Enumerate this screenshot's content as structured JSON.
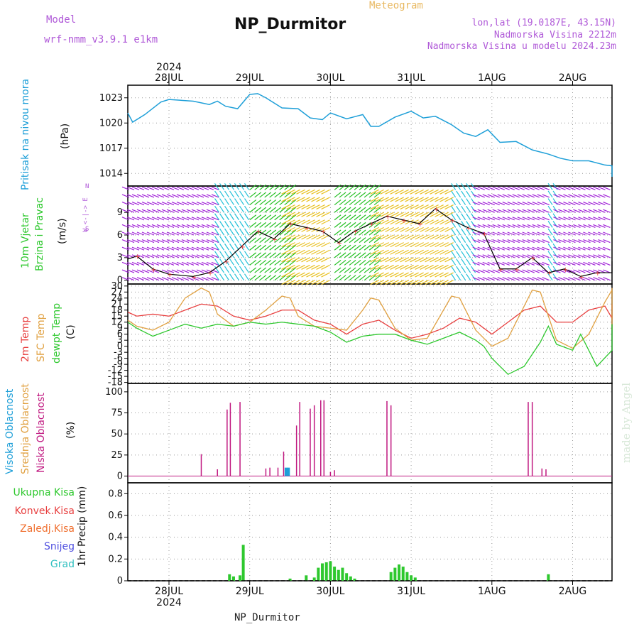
{
  "header": {
    "model_label": "Model",
    "model_name": "wrf-nmm_v3.9.1  e1km",
    "meteogram_label": "Meteogram",
    "station_title": "NP_Durmitor",
    "coords": "lon,lat (19.0187E, 43.15N)",
    "altitude": "Nadmorska Visina 2212m",
    "model_altitude": "Nadmorska Visina u modelu 2024.23m"
  },
  "footer": {
    "station": "NP_Durmitor",
    "credit": "made by Angel"
  },
  "axis": {
    "year": "2024",
    "days": [
      "28JUL",
      "29JUL",
      "30JUL",
      "31JUL",
      "1AUG",
      "2AUG"
    ]
  },
  "panels": {
    "pressure": {
      "label": "Pritisak na nivou mora",
      "unit": "(hPa)"
    },
    "wind": {
      "label1": "10m Vjetar",
      "label2": "Brzina i Pravac",
      "unit": "(m/s)",
      "compass": "W <-|-> E",
      "compass_n": "N",
      "compass_s": "S"
    },
    "temp": {
      "label_2m": "2m Temp",
      "label_sfc": "SFC Temp",
      "label_dew": "dewpt Temp",
      "unit": "(C)"
    },
    "cloud": {
      "label_high": "Visoka Oblacnost",
      "label_mid": "Srednja Oblacnost",
      "label_low": "Niska Oblacnost",
      "unit": "(%)"
    },
    "precip": {
      "unit": "1hr Precip (mm)",
      "legend": [
        "Ukupna Kisa",
        "Konvek.Kisa",
        "Zaledj.Kisa",
        "Snijeg",
        "Grad"
      ]
    }
  },
  "colors": {
    "pressure": "#1e9fd8",
    "t2m": "#e84040",
    "tsfc": "#e0a040",
    "dew": "#2ec82e",
    "cloud_low": "#c01880",
    "cloud_high": "#1e9fd8",
    "precip": "#2ec82e",
    "purple": "#b05ad8",
    "meteogram": "#e8b860",
    "leg_total": "#2ec82e",
    "leg_conv": "#e84040",
    "leg_frz": "#f07030",
    "leg_snow": "#5050e0",
    "leg_grad": "#30c0c0"
  },
  "chart_data": [
    {
      "type": "line",
      "name": "pressure",
      "x": [
        -0.6,
        -0.45,
        -0.3,
        -0.1,
        0.0,
        0.3,
        0.5,
        0.6,
        0.7,
        0.85,
        1.0,
        1.1,
        1.2,
        1.4,
        1.6,
        1.75,
        1.9,
        2.0,
        2.2,
        2.4,
        2.5,
        2.6,
        2.8,
        3.0,
        3.15,
        3.3,
        3.5,
        3.65,
        3.8,
        3.95,
        4.1,
        4.3,
        4.5,
        4.7,
        4.85,
        5.0,
        5.2,
        5.4,
        5.6,
        5.8,
        5.95
      ],
      "y": [
        1021.2,
        1020.1,
        1021.0,
        1022.5,
        1022.8,
        1022.6,
        1022.2,
        1022.6,
        1022.0,
        1021.7,
        1023.4,
        1023.5,
        1023.0,
        1021.8,
        1021.7,
        1020.6,
        1020.4,
        1021.2,
        1020.5,
        1021.0,
        1019.6,
        1019.6,
        1020.7,
        1021.4,
        1020.6,
        1020.8,
        1019.8,
        1018.8,
        1018.4,
        1019.2,
        1017.7,
        1017.8,
        1016.8,
        1016.3,
        1015.8,
        1015.5,
        1015.5,
        1015.0,
        1014.9,
        1014.6,
        1013.6
      ],
      "ylim": [
        1012.5,
        1024.5
      ],
      "yticks": [
        1014,
        1017,
        1020,
        1023
      ]
    },
    {
      "type": "line",
      "name": "wind_speed",
      "x": [
        -0.6,
        -0.4,
        -0.2,
        0.0,
        0.3,
        0.5,
        0.7,
        0.9,
        1.1,
        1.3,
        1.5,
        1.7,
        1.9,
        2.1,
        2.3,
        2.5,
        2.7,
        2.9,
        3.1,
        3.3,
        3.5,
        3.7,
        3.9,
        4.1,
        4.3,
        4.5,
        4.7,
        4.9,
        5.1,
        5.3,
        5.5,
        5.7,
        5.95
      ],
      "y": [
        2.8,
        3.2,
        1.5,
        0.8,
        0.5,
        1.0,
        2.5,
        4.5,
        6.5,
        5.5,
        7.5,
        7.0,
        6.5,
        5.0,
        6.5,
        7.5,
        8.5,
        8.0,
        7.5,
        9.5,
        8.0,
        7.0,
        6.2,
        1.5,
        1.5,
        3.0,
        1.0,
        1.5,
        0.5,
        1.0,
        1.0,
        1.5,
        2.5
      ],
      "ylim": [
        -0.5,
        12.5
      ],
      "yticks": [
        0,
        3,
        6,
        9
      ],
      "barb_bands": [
        {
          "x0": -0.6,
          "x1": 0.62,
          "color": "#a020d8"
        },
        {
          "x0": 0.62,
          "x1": 1.0,
          "color": "#20c0d8"
        },
        {
          "x0": 1.0,
          "x1": 1.5,
          "color": "#20c020"
        },
        {
          "x0": 1.5,
          "x1": 2.05,
          "color": "#e8c020"
        },
        {
          "x0": 2.05,
          "x1": 2.6,
          "color": "#20c020"
        },
        {
          "x0": 2.6,
          "x1": 3.55,
          "color": "#e8c020"
        },
        {
          "x0": 3.55,
          "x1": 3.85,
          "color": "#20c0d8"
        },
        {
          "x0": 3.85,
          "x1": 4.75,
          "color": "#a020d8"
        },
        {
          "x0": 4.75,
          "x1": 4.85,
          "color": "#20c0d8"
        },
        {
          "x0": 4.85,
          "x1": 5.95,
          "color": "#a020d8"
        }
      ]
    },
    {
      "type": "line",
      "name": "temperature",
      "series": [
        {
          "name": "2m Temp",
          "x": [
            -0.6,
            -0.4,
            -0.2,
            0.0,
            0.2,
            0.4,
            0.6,
            0.8,
            1.0,
            1.2,
            1.4,
            1.6,
            1.8,
            2.0,
            2.2,
            2.4,
            2.6,
            2.8,
            3.0,
            3.2,
            3.4,
            3.6,
            3.8,
            4.0,
            4.2,
            4.4,
            4.6,
            4.8,
            5.0,
            5.2,
            5.4,
            5.6,
            5.8,
            5.95
          ],
          "y": [
            17,
            15,
            16,
            15,
            18,
            21,
            20,
            15,
            13,
            15,
            18,
            18,
            13,
            11,
            6,
            11,
            13,
            8,
            4,
            6,
            9,
            14,
            12,
            6,
            12,
            18,
            20,
            12,
            12,
            18,
            20,
            14,
            18,
            21
          ]
        },
        {
          "name": "SFC Temp",
          "x": [
            -0.6,
            -0.4,
            -0.2,
            0.0,
            0.2,
            0.4,
            0.5,
            0.6,
            0.8,
            1.0,
            1.2,
            1.4,
            1.5,
            1.6,
            1.8,
            2.0,
            2.2,
            2.4,
            2.5,
            2.6,
            2.8,
            3.0,
            3.2,
            3.4,
            3.5,
            3.6,
            3.8,
            4.0,
            4.2,
            4.4,
            4.5,
            4.6,
            4.8,
            5.0,
            5.2,
            5.4,
            5.5,
            5.6,
            5.8,
            5.95
          ],
          "y": [
            13,
            10,
            8,
            12,
            24,
            29,
            27,
            16,
            10,
            12,
            18,
            25,
            24,
            15,
            10,
            9,
            8,
            18,
            24,
            23,
            9,
            3,
            4,
            18,
            25,
            24,
            8,
            0,
            4,
            20,
            28,
            27,
            3,
            -1,
            6,
            22,
            28,
            26,
            8,
            29
          ]
        },
        {
          "name": "dewpt Temp",
          "x": [
            -0.6,
            -0.4,
            -0.2,
            0.0,
            0.2,
            0.4,
            0.6,
            0.8,
            1.0,
            1.2,
            1.4,
            1.6,
            1.8,
            2.0,
            2.2,
            2.4,
            2.6,
            2.8,
            3.0,
            3.2,
            3.4,
            3.6,
            3.8,
            3.9,
            4.0,
            4.2,
            4.4,
            4.6,
            4.7,
            4.8,
            5.0,
            5.1,
            5.3,
            5.5,
            5.7,
            5.95
          ],
          "y": [
            12,
            9,
            5,
            8,
            11,
            9,
            11,
            10,
            12,
            11,
            12,
            11,
            10,
            7,
            2,
            5,
            6,
            6,
            3,
            1,
            4,
            7,
            3,
            0,
            -6,
            -14,
            -10,
            2,
            10,
            1,
            -2,
            6,
            -10,
            -2,
            0,
            11
          ]
        }
      ],
      "ylim": [
        -18.5,
        31
      ],
      "yticks": [
        -18,
        -15,
        -12,
        -9,
        -6,
        -3,
        0,
        3,
        6,
        9,
        12,
        15,
        18,
        21,
        24,
        27,
        30
      ]
    },
    {
      "type": "bar",
      "name": "cloud",
      "series": [
        {
          "name": "Niska Oblacnost",
          "x": [
            0.4,
            0.6,
            0.72,
            0.76,
            0.88,
            1.2,
            1.25,
            1.35,
            1.42,
            1.58,
            1.62,
            1.75,
            1.8,
            1.88,
            1.92,
            2.0,
            2.05,
            2.7,
            2.75,
            4.45,
            4.5,
            4.62,
            4.67
          ],
          "values": [
            26,
            8,
            79,
            87,
            88,
            9,
            10,
            10,
            29,
            60,
            88,
            80,
            84,
            90,
            90,
            5,
            7,
            89,
            84,
            88,
            88,
            9,
            8
          ]
        },
        {
          "name": "Visoka Oblacnost",
          "x": [
            1.45,
            1.48
          ],
          "values": [
            10,
            10
          ]
        }
      ],
      "ylim": [
        -8,
        110
      ],
      "yticks": [
        0,
        25,
        50,
        75,
        100
      ]
    },
    {
      "type": "bar",
      "name": "precip",
      "series": [
        {
          "name": "Ukupna Kisa",
          "x": [
            0.75,
            0.8,
            0.88,
            0.92,
            1.5,
            1.7,
            1.8,
            1.85,
            1.9,
            1.95,
            2.0,
            2.05,
            2.1,
            2.15,
            2.2,
            2.25,
            2.3,
            2.75,
            2.8,
            2.85,
            2.9,
            2.95,
            3.0,
            3.05,
            4.7
          ],
          "values": [
            0.06,
            0.04,
            0.05,
            0.33,
            0.02,
            0.05,
            0.03,
            0.12,
            0.16,
            0.17,
            0.18,
            0.13,
            0.1,
            0.12,
            0.07,
            0.04,
            0.02,
            0.08,
            0.12,
            0.15,
            0.13,
            0.08,
            0.05,
            0.03,
            0.06
          ]
        }
      ],
      "ylim": [
        0,
        0.9
      ],
      "yticks": [
        0,
        0.2,
        0.4,
        0.6,
        0.8
      ]
    }
  ]
}
